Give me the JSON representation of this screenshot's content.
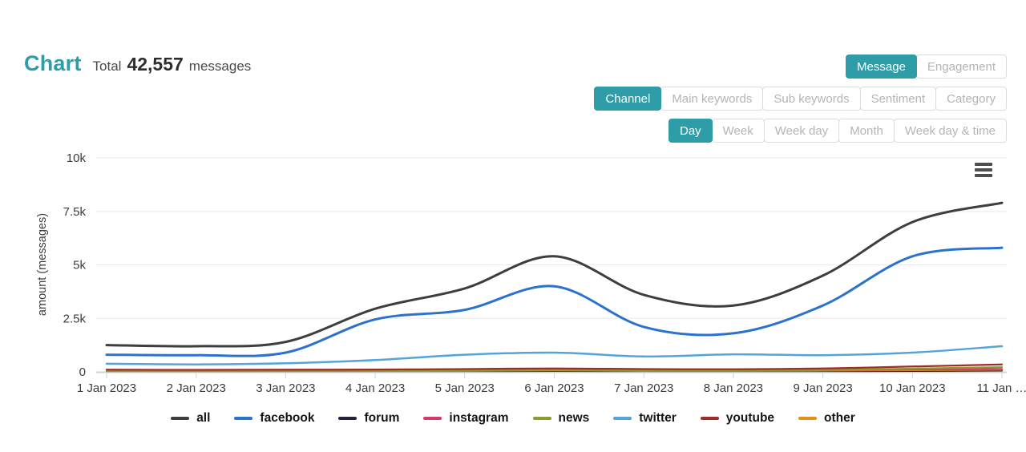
{
  "header": {
    "title": "Chart",
    "total_label": "Total",
    "total_value": "42,557",
    "total_unit": "messages"
  },
  "toolbars": {
    "view": {
      "items": [
        {
          "label": "Message",
          "active": true
        },
        {
          "label": "Engagement",
          "active": false
        }
      ]
    },
    "dimension": {
      "items": [
        {
          "label": "Channel",
          "active": true
        },
        {
          "label": "Main keywords",
          "active": false
        },
        {
          "label": "Sub keywords",
          "active": false
        },
        {
          "label": "Sentiment",
          "active": false
        },
        {
          "label": "Category",
          "active": false
        }
      ]
    },
    "granularity": {
      "items": [
        {
          "label": "Day",
          "active": true
        },
        {
          "label": "Week",
          "active": false
        },
        {
          "label": "Week day",
          "active": false
        },
        {
          "label": "Month",
          "active": false
        },
        {
          "label": "Week day & time",
          "active": false
        }
      ]
    }
  },
  "menu_icon": "hamburger-menu-icon",
  "colors": {
    "accent": "#2F9DA7",
    "grid": "#EAEAEA",
    "zero_line": "#D5D5D5",
    "axis_tick": "#C9D4DE",
    "axis_text": "#3C3C3C"
  },
  "chart_data": {
    "type": "line",
    "title": "",
    "xlabel": "",
    "ylabel": "amount (messages)",
    "ylim": [
      0,
      10000
    ],
    "grid": true,
    "legend_position": "bottom",
    "x": [
      "1 Jan 2023",
      "2 Jan 2023",
      "3 Jan 2023",
      "4 Jan 2023",
      "5 Jan 2023",
      "6 Jan 2023",
      "7 Jan 2023",
      "8 Jan 2023",
      "9 Jan 2023",
      "10 Jan 2023",
      "11 Jan …"
    ],
    "yticks": [
      {
        "value": 0,
        "label": "0"
      },
      {
        "value": 2500,
        "label": "2.5k"
      },
      {
        "value": 5000,
        "label": "5k"
      },
      {
        "value": 7500,
        "label": "7.5k"
      },
      {
        "value": 10000,
        "label": "10k"
      }
    ],
    "series": [
      {
        "name": "all",
        "color": "#3E3E3E",
        "width": 3,
        "values": [
          1250,
          1200,
          1400,
          2950,
          3900,
          5400,
          3600,
          3100,
          4500,
          7000,
          7900
        ]
      },
      {
        "name": "facebook",
        "color": "#2B72CC",
        "width": 3,
        "values": [
          800,
          780,
          900,
          2450,
          2900,
          4000,
          2100,
          1800,
          3100,
          5400,
          5800
        ]
      },
      {
        "name": "forum",
        "color": "#23233F",
        "width": 2.25,
        "values": [
          15,
          15,
          15,
          20,
          25,
          40,
          30,
          25,
          30,
          40,
          60
        ]
      },
      {
        "name": "instagram",
        "color": "#D23A68",
        "width": 2.25,
        "values": [
          60,
          55,
          60,
          70,
          90,
          120,
          90,
          80,
          90,
          110,
          130
        ]
      },
      {
        "name": "news",
        "color": "#8B9B2D",
        "width": 2.25,
        "values": [
          40,
          35,
          40,
          50,
          60,
          90,
          70,
          60,
          90,
          150,
          220
        ]
      },
      {
        "name": "twitter",
        "color": "#55A4D8",
        "width": 2.5,
        "values": [
          380,
          350,
          400,
          550,
          800,
          900,
          720,
          820,
          780,
          900,
          1200
        ]
      },
      {
        "name": "youtube",
        "color": "#A02C29",
        "width": 2.25,
        "values": [
          100,
          95,
          100,
          110,
          130,
          160,
          130,
          120,
          160,
          250,
          350
        ]
      },
      {
        "name": "other",
        "color": "#E2901E",
        "width": 2.25,
        "values": [
          30,
          30,
          30,
          40,
          50,
          70,
          50,
          45,
          60,
          80,
          100
        ]
      }
    ]
  }
}
